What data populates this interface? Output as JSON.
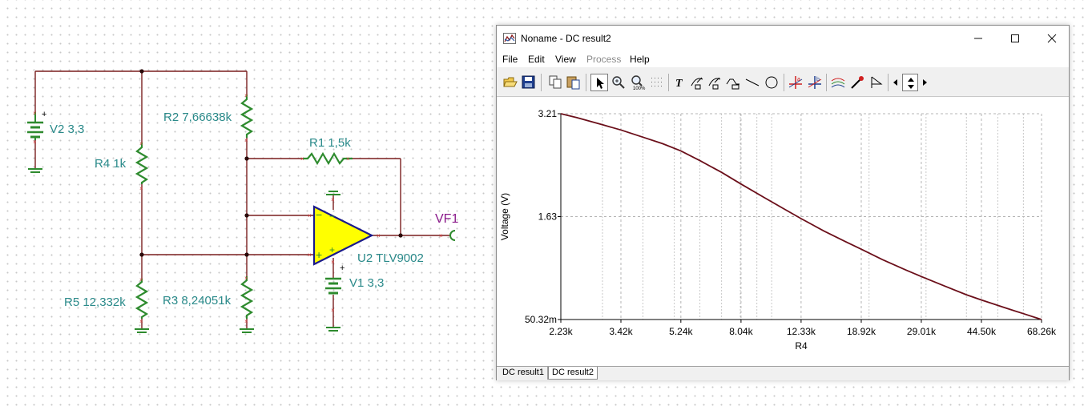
{
  "schematic": {
    "labels": {
      "v2": "V2 3,3",
      "r4": "R4 1k",
      "r2": "R2 7,66638k",
      "r1": "R1 1,5k",
      "vf1": "VF1",
      "u2": "U2 TLV9002",
      "v1": "V1 3,3",
      "r5": "R5 12,332k",
      "r3": "R3 8,24051k"
    },
    "colors": {
      "wire": "#7a1e1e",
      "component": "#2e8b2e",
      "opamp_fill": "#ffff00",
      "opamp_stroke": "#1a1a8b",
      "label": "#2a8a8a",
      "probe_label": "#8b1a8b"
    }
  },
  "window": {
    "title": "Noname - DC result2",
    "controls": [
      "minimize",
      "maximize",
      "close"
    ],
    "menu": [
      "File",
      "Edit",
      "View",
      "Process",
      "Help"
    ],
    "menu_disabled": [
      "Process"
    ],
    "toolbar_icons": [
      "open-icon",
      "save-icon",
      "copy-icon",
      "paste-icon",
      "pointer-icon",
      "zoom-in-icon",
      "zoom-100-icon",
      "grid-icon",
      "text-icon",
      "cursor-a-icon",
      "cursor-b-icon",
      "curve-icon",
      "line-icon",
      "circle-icon",
      "marker-a-icon",
      "marker-b-icon",
      "series-icon",
      "probe-icon",
      "flag-icon",
      "scroll-left-icon",
      "scroll-updown-icon",
      "scroll-right-icon"
    ],
    "tabs": [
      {
        "label": "DC result1",
        "active": false
      },
      {
        "label": "DC result2",
        "active": true
      }
    ]
  },
  "chart_data": {
    "type": "line",
    "xlabel": "R4",
    "ylabel": "Voltage (V)",
    "x_scale": "log",
    "x_tick_labels": [
      "2.23k",
      "3.42k",
      "5.24k",
      "8.04k",
      "12.33k",
      "18.92k",
      "29.01k",
      "44.50k",
      "68.26k"
    ],
    "x_ticks": [
      2230,
      3420,
      5240,
      8040,
      12330,
      18920,
      29010,
      44500,
      68260
    ],
    "y_tick_labels": [
      "3.21",
      "1.63",
      "50.32m"
    ],
    "y_ticks": [
      3.21,
      1.63,
      0.05032
    ],
    "xlim": [
      2230,
      68260
    ],
    "ylim": [
      0.05032,
      3.21
    ],
    "grid": true,
    "series": [
      {
        "color": "#6b0f1a",
        "x": [
          2230,
          2500,
          3000,
          3420,
          4000,
          4600,
          5240,
          6000,
          7000,
          8040,
          9500,
          11000,
          12330,
          14500,
          17000,
          18920,
          22000,
          26000,
          29010,
          34000,
          40000,
          44500,
          52000,
          60000,
          68260
        ],
        "y": [
          3.21,
          3.15,
          3.04,
          2.96,
          2.85,
          2.75,
          2.64,
          2.49,
          2.31,
          2.13,
          1.92,
          1.74,
          1.6,
          1.41,
          1.24,
          1.13,
          0.97,
          0.81,
          0.71,
          0.57,
          0.43,
          0.35,
          0.24,
          0.14,
          0.05032
        ]
      }
    ]
  }
}
